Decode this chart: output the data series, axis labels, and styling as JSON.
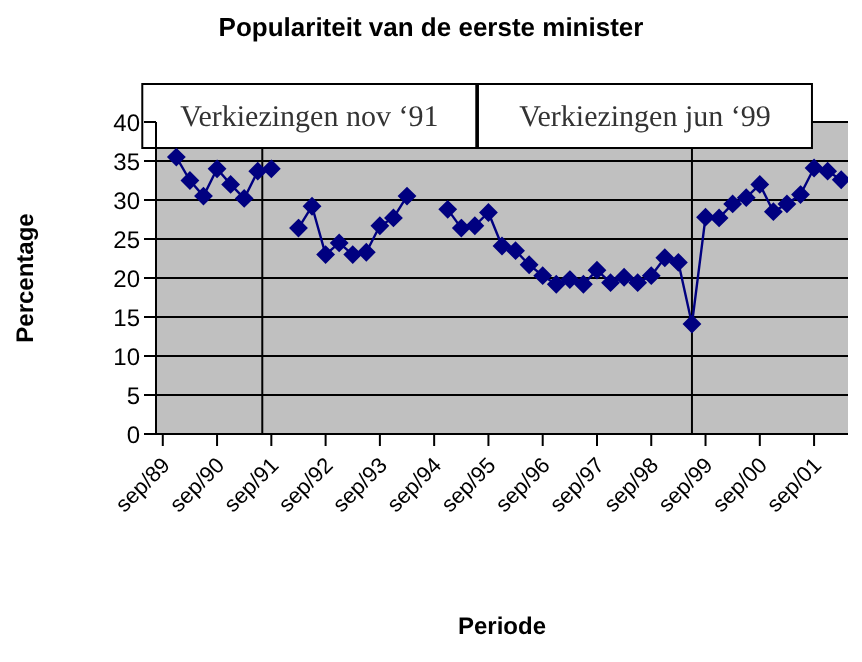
{
  "chart_data": {
    "type": "line",
    "title": "Populariteit van de eerste minister",
    "xlabel": "Periode",
    "ylabel": "Percentage",
    "x": [
      "1989-12",
      "1990-03",
      "1990-06",
      "1990-09",
      "1990-12",
      "1991-03",
      "1991-06",
      "1991-09",
      "1991-12",
      "1992-03",
      "1992-06",
      "1992-09",
      "1992-12",
      "1993-03",
      "1993-06",
      "1993-09",
      "1993-12",
      "1994-03",
      "1994-06",
      "1994-09",
      "1994-12",
      "1995-03",
      "1995-06",
      "1995-09",
      "1995-12",
      "1996-03",
      "1996-06",
      "1996-09",
      "1996-12",
      "1997-03",
      "1997-06",
      "1997-09",
      "1997-12",
      "1998-03",
      "1998-06",
      "1998-09",
      "1998-12",
      "1999-03",
      "1999-06",
      "1999-09",
      "1999-12",
      "2000-03",
      "2000-06",
      "2000-09",
      "2000-12",
      "2001-03",
      "2001-06",
      "2001-09",
      "2001-12",
      "2002-03"
    ],
    "series": [
      {
        "color": "#000080",
        "values": [
          35.5,
          32.5,
          30.5,
          34,
          32,
          30.2,
          33.7,
          34,
          null,
          26.4,
          29.2,
          23,
          24.5,
          23,
          23.3,
          26.7,
          27.7,
          30.5,
          null,
          null,
          28.8,
          26.4,
          26.7,
          28.4,
          24.1,
          23.5,
          21.7,
          20.3,
          19.2,
          19.8,
          19.2,
          21,
          19.4,
          20.1,
          19.4,
          20.3,
          22.6,
          22,
          14.1,
          27.8,
          27.7,
          29.5,
          30.3,
          32,
          28.5,
          29.5,
          30.7,
          34.1,
          33.7,
          32.6
        ]
      }
    ],
    "xlim": [
      "1989-07-16",
      "2002-04-16"
    ],
    "xticks": [
      {
        "value": "1989-09",
        "label": "sep/89"
      },
      {
        "value": "1990-09",
        "label": "sep/90"
      },
      {
        "value": "1991-09",
        "label": "sep/91"
      },
      {
        "value": "1992-09",
        "label": "sep/92"
      },
      {
        "value": "1993-09",
        "label": "sep/93"
      },
      {
        "value": "1994-09",
        "label": "sep/94"
      },
      {
        "value": "1995-09",
        "label": "sep/95"
      },
      {
        "value": "1996-09",
        "label": "sep/96"
      },
      {
        "value": "1997-09",
        "label": "sep/97"
      },
      {
        "value": "1998-09",
        "label": "sep/98"
      },
      {
        "value": "1999-09",
        "label": "sep/99"
      },
      {
        "value": "2000-09",
        "label": "sep/00"
      },
      {
        "value": "2001-09",
        "label": "sep/01"
      }
    ],
    "ylim": [
      0,
      40
    ],
    "yticks": [
      0,
      5,
      10,
      15,
      20,
      25,
      30,
      35,
      40
    ],
    "ref_lines": [
      {
        "axis": "x",
        "value": "1991-07",
        "label": "Verkiezingen nov ‘91",
        "color": "#000000"
      },
      {
        "axis": "x",
        "value": "1999-06",
        "label": "Verkiezingen jun ‘99",
        "color": "#000000"
      }
    ],
    "grid": "y",
    "marker": "diamond",
    "line_style": "solid"
  }
}
